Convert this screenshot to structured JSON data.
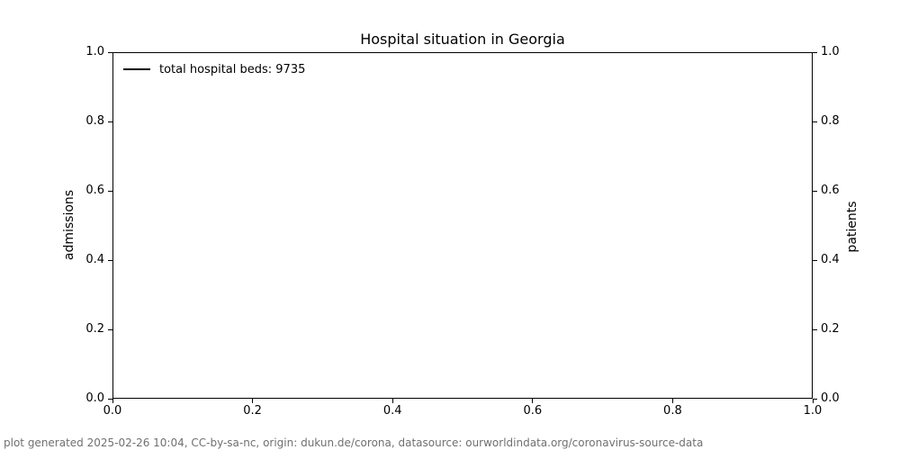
{
  "chart_data": {
    "type": "line",
    "title": "Hospital situation in Georgia",
    "xlabel": "",
    "ylabel_left": "admissions",
    "ylabel_right": "patients",
    "xlim": [
      0.0,
      1.0
    ],
    "ylim_left": [
      0.0,
      1.0
    ],
    "ylim_right": [
      0.0,
      1.0
    ],
    "x_ticks": [
      "0.0",
      "0.2",
      "0.4",
      "0.6",
      "0.8",
      "1.0"
    ],
    "y_ticks_left": [
      "0.0",
      "0.2",
      "0.4",
      "0.6",
      "0.8",
      "1.0"
    ],
    "y_ticks_right": [
      "0.0",
      "0.2",
      "0.4",
      "0.6",
      "0.8",
      "1.0"
    ],
    "grid": false,
    "legend_position": "upper left",
    "legend": [
      {
        "label": "total hospital beds: 9735",
        "line_color": "#000000"
      }
    ],
    "series": [
      {
        "name": "total hospital beds: 9735",
        "color": "#000000",
        "values": []
      }
    ]
  },
  "footer": {
    "text": "plot generated 2025-02-26 10:04, CC-by-sa-nc, origin: dukun.de/corona, datasource: ourworldindata.org/coronavirus-source-data",
    "color": "#707070"
  },
  "colors": {
    "background": "#ffffff",
    "spine": "#000000",
    "text": "#000000"
  }
}
